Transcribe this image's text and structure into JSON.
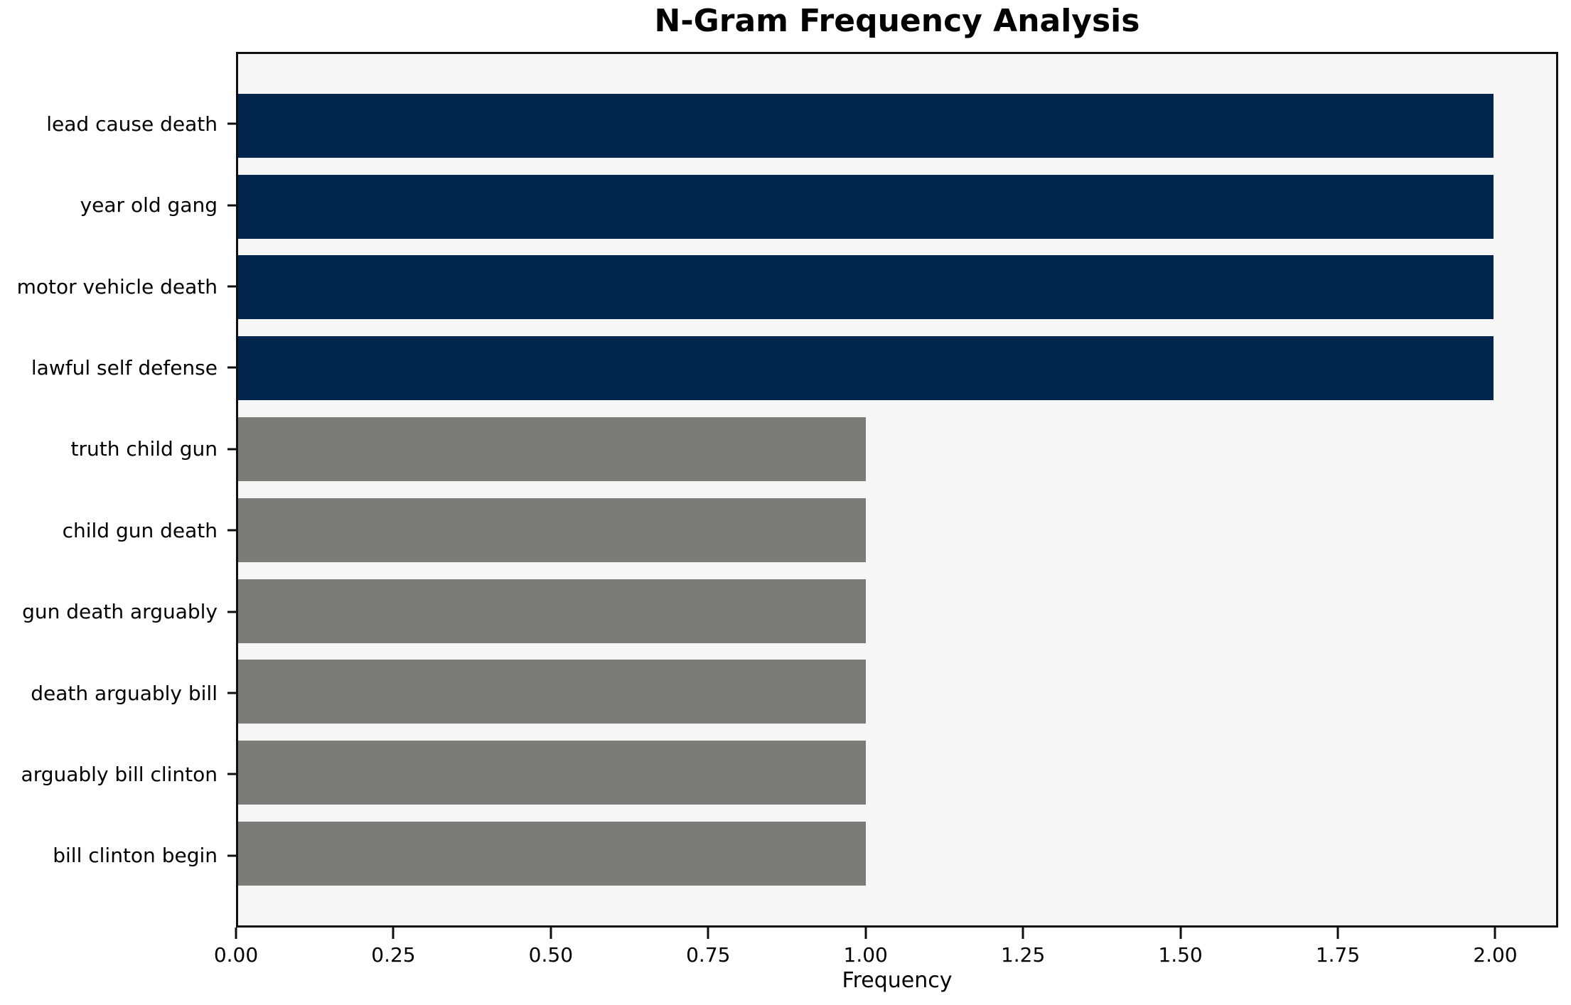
{
  "chart_data": {
    "type": "bar",
    "orientation": "horizontal",
    "title": "N-Gram Frequency Analysis",
    "xlabel": "Frequency",
    "ylabel": "",
    "categories": [
      "lead cause death",
      "year old gang",
      "motor vehicle death",
      "lawful self defense",
      "truth child gun",
      "child gun death",
      "gun death arguably",
      "death arguably bill",
      "arguably bill clinton",
      "bill clinton begin"
    ],
    "values": [
      2,
      2,
      2,
      2,
      1,
      1,
      1,
      1,
      1,
      1
    ],
    "xlim": [
      0,
      2.1
    ],
    "xtick_labels": [
      "0.00",
      "0.25",
      "0.50",
      "0.75",
      "1.00",
      "1.25",
      "1.50",
      "1.75",
      "2.00"
    ],
    "xtick_values": [
      0,
      0.25,
      0.5,
      0.75,
      1.0,
      1.25,
      1.5,
      1.75,
      2.0
    ],
    "bar_colors": [
      "#02254d",
      "#02254d",
      "#02254d",
      "#02254d",
      "#7b7b78",
      "#7b7b78",
      "#7b7b78",
      "#7b7b78",
      "#7b7b78",
      "#7b7b78"
    ],
    "colors": {
      "frequency_2_bar": "#02254d",
      "frequency_1_bar": "#7b7b78",
      "plot_background": "#f6f6f6",
      "figure_background": "#ffffff",
      "spine": "#0f0f0f",
      "text": "#000000"
    },
    "grid": false,
    "legend": "none"
  }
}
